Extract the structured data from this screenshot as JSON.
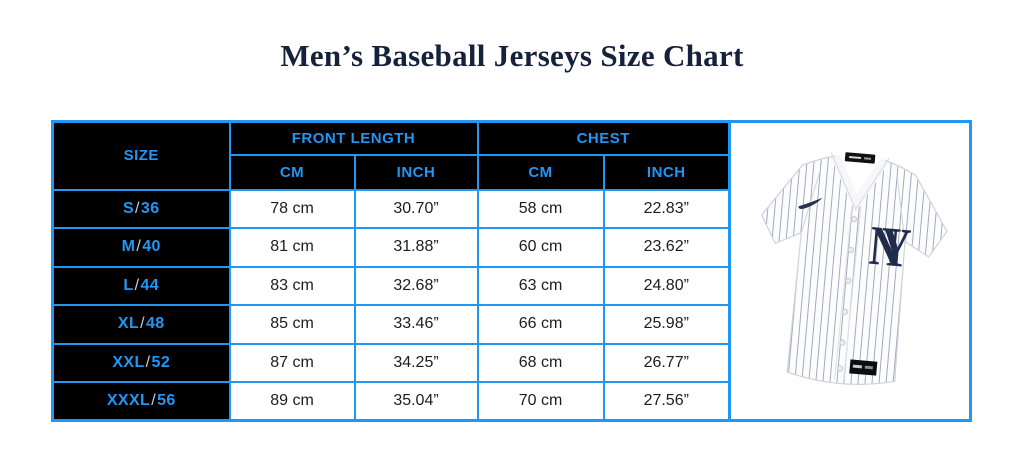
{
  "title": "Men’s Baseball Jerseys Size Chart",
  "colors": {
    "accent_blue": "#2196f3",
    "header_bg": "#000000",
    "title_navy": "#16223c",
    "body_text": "#1d1d1f",
    "slash_gray": "#c9ced6",
    "logo_navy": "#1f2c4c"
  },
  "table": {
    "header": {
      "size": "SIZE",
      "front_length": "FRONT LENGTH",
      "chest": "CHEST",
      "units": [
        "CM",
        "INCH",
        "CM",
        "INCH"
      ]
    },
    "rows": [
      {
        "size": "S/36",
        "values": [
          "78 cm",
          "30.70”",
          "58 cm",
          "22.83”"
        ]
      },
      {
        "size": "M/40",
        "values": [
          "81 cm",
          "31.88”",
          "60 cm",
          "23.62”"
        ]
      },
      {
        "size": "L/44",
        "values": [
          "83 cm",
          "32.68”",
          "63 cm",
          "24.80”"
        ]
      },
      {
        "size": "XL/48",
        "values": [
          "85 cm",
          "33.46”",
          "66 cm",
          "25.98”"
        ]
      },
      {
        "size": "XXL/52",
        "values": [
          "87 cm",
          "34.25”",
          "68 cm",
          "26.77”"
        ]
      },
      {
        "size": "XXXL/56",
        "values": [
          "89 cm",
          "35.04”",
          "70 cm",
          "27.56”"
        ]
      }
    ]
  },
  "jersey": {
    "logo": "NY"
  },
  "chart_data": {
    "type": "table",
    "title": "Men’s Baseball Jerseys Size Chart",
    "columns": [
      "SIZE",
      "FRONT LENGTH CM",
      "FRONT LENGTH INCH",
      "CHEST CM",
      "CHEST INCH"
    ],
    "rows": [
      [
        "S/36",
        "78 cm",
        "30.70”",
        "58 cm",
        "22.83”"
      ],
      [
        "M/40",
        "81 cm",
        "31.88”",
        "60 cm",
        "23.62”"
      ],
      [
        "L/44",
        "83 cm",
        "32.68”",
        "63 cm",
        "24.80”"
      ],
      [
        "XL/48",
        "85 cm",
        "33.46”",
        "66 cm",
        "25.98”"
      ],
      [
        "XXL/52",
        "87 cm",
        "34.25”",
        "68 cm",
        "26.77”"
      ],
      [
        "XXXL/56",
        "89 cm",
        "35.04”",
        "70 cm",
        "27.56”"
      ]
    ]
  }
}
